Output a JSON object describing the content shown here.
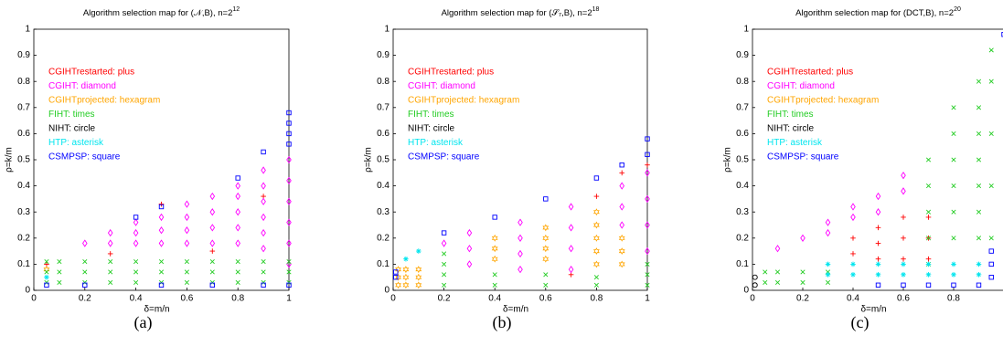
{
  "chart_data": [
    {
      "type": "scatter",
      "title": "Algorithm selection map for (𝒩,B), n=2",
      "title_exponent": "12",
      "caption": "(a)",
      "x_label": "δ=m/n",
      "y_label": "ρ=k/m",
      "xlim": [
        0,
        1
      ],
      "ylim": [
        0,
        1
      ],
      "xticks": [
        0,
        0.2,
        0.4,
        0.6,
        0.8,
        1
      ],
      "yticks": [
        0,
        0.1,
        0.2,
        0.3,
        0.4,
        0.5,
        0.6,
        0.7,
        0.8,
        0.9,
        1
      ],
      "series": [
        {
          "name": "CGIHTrestarted: plus",
          "color": "#ff0000",
          "marker": "plus",
          "x": [
            0.05,
            0.3,
            0.5,
            0.7,
            0.9
          ],
          "values": [
            0.1,
            0.14,
            0.33,
            0.15,
            0.36
          ]
        },
        {
          "name": "CGIHT: diamond",
          "color": "#ff00ff",
          "marker": "diamond",
          "x": [
            0.2,
            0.3,
            0.3,
            0.4,
            0.4,
            0.4,
            0.5,
            0.5,
            0.5,
            0.6,
            0.6,
            0.6,
            0.6,
            0.7,
            0.7,
            0.7,
            0.7,
            0.8,
            0.8,
            0.8,
            0.8,
            0.8,
            0.9,
            0.9,
            0.9,
            0.9,
            0.9,
            0.9,
            1,
            1,
            1,
            1,
            1,
            1
          ],
          "values": [
            0.18,
            0.18,
            0.22,
            0.18,
            0.22,
            0.26,
            0.18,
            0.23,
            0.28,
            0.18,
            0.23,
            0.28,
            0.33,
            0.18,
            0.24,
            0.3,
            0.36,
            0.18,
            0.24,
            0.3,
            0.36,
            0.4,
            0.16,
            0.22,
            0.28,
            0.34,
            0.4,
            0.46,
            0.1,
            0.18,
            0.26,
            0.34,
            0.42,
            0.5
          ]
        },
        {
          "name": "CGIHTprojected: hexagram",
          "color": "#ffa500",
          "marker": "hexagram",
          "x": [
            0.05
          ],
          "values": [
            0.08
          ]
        },
        {
          "name": "FIHT: times",
          "color": "#22cc22",
          "marker": "times",
          "x": [
            0.05,
            0.05,
            0.05,
            0.1,
            0.1,
            0.1,
            0.2,
            0.2,
            0.2,
            0.3,
            0.3,
            0.3,
            0.4,
            0.4,
            0.4,
            0.5,
            0.5,
            0.5,
            0.6,
            0.6,
            0.6,
            0.7,
            0.7,
            0.7,
            0.8,
            0.8,
            0.8,
            0.9,
            0.9,
            0.9,
            1,
            1,
            1
          ],
          "values": [
            0.03,
            0.07,
            0.11,
            0.03,
            0.07,
            0.11,
            0.03,
            0.07,
            0.11,
            0.03,
            0.07,
            0.11,
            0.03,
            0.07,
            0.11,
            0.03,
            0.07,
            0.11,
            0.03,
            0.07,
            0.11,
            0.03,
            0.07,
            0.11,
            0.03,
            0.07,
            0.11,
            0.03,
            0.07,
            0.11,
            0.03,
            0.07,
            0.11
          ]
        },
        {
          "name": "NIHT: circle",
          "color": "#000000",
          "marker": "circle",
          "x": [],
          "values": []
        },
        {
          "name": "HTP: asterisk",
          "color": "#00e5ee",
          "marker": "asterisk",
          "x": [
            0.05
          ],
          "values": [
            0.05
          ]
        },
        {
          "name": "CSMPSP: square",
          "color": "#0000ff",
          "marker": "square",
          "x": [
            0.4,
            0.5,
            0.8,
            0.9,
            1,
            1,
            1,
            1,
            0.05,
            0.2,
            0.5,
            0.7,
            0.9,
            1
          ],
          "values": [
            0.28,
            0.32,
            0.43,
            0.53,
            0.56,
            0.6,
            0.64,
            0.68,
            0.02,
            0.02,
            0.02,
            0.02,
            0.02,
            0.02
          ]
        }
      ]
    },
    {
      "type": "scatter",
      "title": "Algorithm selection map for (𝒮₇,B), n=2",
      "title_exponent": "18",
      "caption": "(b)",
      "x_label": "δ=m/n",
      "y_label": "ρ=k/m",
      "xlim": [
        0,
        1
      ],
      "ylim": [
        0,
        1
      ],
      "xticks": [
        0,
        0.2,
        0.4,
        0.6,
        0.8,
        1
      ],
      "yticks": [
        0,
        0.1,
        0.2,
        0.3,
        0.4,
        0.5,
        0.6,
        0.7,
        0.8,
        0.9,
        1
      ],
      "series": [
        {
          "name": "CGIHTrestarted: plus",
          "color": "#ff0000",
          "marker": "plus",
          "x": [
            0.8,
            0.9,
            1,
            0.7
          ],
          "values": [
            0.36,
            0.45,
            0.48,
            0.06
          ]
        },
        {
          "name": "CGIHT: diamond",
          "color": "#ff00ff",
          "marker": "diamond",
          "x": [
            0.2,
            0.3,
            0.3,
            0.3,
            0.5,
            0.5,
            0.5,
            0.5,
            0.7,
            0.7,
            0.7,
            0.7,
            0.9,
            0.9,
            0.9,
            1,
            1,
            1,
            1
          ],
          "values": [
            0.18,
            0.1,
            0.16,
            0.22,
            0.08,
            0.14,
            0.2,
            0.26,
            0.08,
            0.16,
            0.24,
            0.32,
            0.25,
            0.32,
            0.4,
            0.15,
            0.25,
            0.35,
            0.45
          ]
        },
        {
          "name": "CGIHTprojected: hexagram",
          "color": "#ffa500",
          "marker": "hexagram",
          "x": [
            0.02,
            0.02,
            0.02,
            0.05,
            0.05,
            0.05,
            0.1,
            0.1,
            0.1,
            0.4,
            0.4,
            0.4,
            0.6,
            0.6,
            0.6,
            0.6,
            0.8,
            0.8,
            0.8,
            0.8,
            0.8,
            0.9,
            0.9,
            0.9
          ],
          "values": [
            0.02,
            0.05,
            0.08,
            0.02,
            0.05,
            0.08,
            0.02,
            0.05,
            0.08,
            0.12,
            0.16,
            0.2,
            0.12,
            0.16,
            0.2,
            0.24,
            0.1,
            0.15,
            0.2,
            0.25,
            0.3,
            0.1,
            0.15,
            0.2
          ]
        },
        {
          "name": "FIHT: times",
          "color": "#22cc22",
          "marker": "times",
          "x": [
            0.2,
            0.2,
            0.2,
            0.2,
            0.4,
            0.4,
            0.6,
            0.6,
            0.8,
            0.8,
            1,
            1,
            1
          ],
          "values": [
            0.02,
            0.06,
            0.1,
            0.14,
            0.02,
            0.06,
            0.02,
            0.06,
            0.02,
            0.05,
            0.02,
            0.06,
            0.1
          ]
        },
        {
          "name": "NIHT: circle",
          "color": "#000000",
          "marker": "circle",
          "x": [],
          "values": []
        },
        {
          "name": "HTP: asterisk",
          "color": "#00e5ee",
          "marker": "asterisk",
          "x": [
            0.05,
            0.1
          ],
          "values": [
            0.12,
            0.15
          ]
        },
        {
          "name": "CSMPSP: square",
          "color": "#0000ff",
          "marker": "square",
          "x": [
            0.2,
            0.4,
            0.6,
            0.8,
            0.9,
            1,
            1,
            0.01,
            0.01
          ],
          "values": [
            0.22,
            0.28,
            0.35,
            0.43,
            0.48,
            0.52,
            0.58,
            0.05,
            0.07
          ]
        }
      ]
    },
    {
      "type": "scatter",
      "title": "Algorithm selection map for (DCT,B), n=2",
      "title_exponent": "20",
      "caption": "(c)",
      "x_label": "δ=m/n",
      "y_label": "ρ=k/m",
      "xlim": [
        0,
        1
      ],
      "ylim": [
        0,
        1
      ],
      "xticks": [
        0,
        0.2,
        0.4,
        0.6,
        0.8
      ],
      "yticks": [
        0,
        0.1,
        0.2,
        0.3,
        0.4,
        0.5,
        0.6,
        0.7,
        0.8,
        0.9,
        1
      ],
      "series": [
        {
          "name": "CGIHTrestarted: plus",
          "color": "#ff0000",
          "marker": "plus",
          "x": [
            0.4,
            0.4,
            0.5,
            0.5,
            0.5,
            0.6,
            0.6,
            0.6,
            0.7,
            0.7,
            0.7
          ],
          "values": [
            0.14,
            0.2,
            0.12,
            0.18,
            0.24,
            0.12,
            0.2,
            0.28,
            0.12,
            0.2,
            0.28
          ]
        },
        {
          "name": "CGIHT: diamond",
          "color": "#ff00ff",
          "marker": "diamond",
          "x": [
            0.1,
            0.2,
            0.3,
            0.3,
            0.4,
            0.4,
            0.5,
            0.5,
            0.6,
            0.6
          ],
          "values": [
            0.16,
            0.2,
            0.22,
            0.26,
            0.28,
            0.32,
            0.3,
            0.36,
            0.38,
            0.44
          ]
        },
        {
          "name": "CGIHTprojected: hexagram",
          "color": "#ffa500",
          "marker": "hexagram",
          "x": [],
          "values": []
        },
        {
          "name": "FIHT: times",
          "color": "#22cc22",
          "marker": "times",
          "x": [
            0.05,
            0.05,
            0.1,
            0.1,
            0.2,
            0.2,
            0.3,
            0.3,
            0.7,
            0.7,
            0.7,
            0.7,
            0.7,
            0.8,
            0.8,
            0.8,
            0.8,
            0.8,
            0.8,
            0.9,
            0.9,
            0.9,
            0.9,
            0.9,
            0.9,
            0.9,
            0.95,
            0.95,
            0.95,
            0.95,
            0.95
          ],
          "values": [
            0.03,
            0.07,
            0.03,
            0.07,
            0.03,
            0.07,
            0.03,
            0.07,
            0.1,
            0.2,
            0.3,
            0.4,
            0.5,
            0.2,
            0.3,
            0.4,
            0.5,
            0.6,
            0.7,
            0.2,
            0.3,
            0.4,
            0.5,
            0.6,
            0.7,
            0.8,
            0.2,
            0.4,
            0.6,
            0.8,
            0.92
          ]
        },
        {
          "name": "NIHT: circle",
          "color": "#000000",
          "marker": "circle",
          "x": [
            0.01,
            0.01
          ],
          "values": [
            0.02,
            0.05
          ]
        },
        {
          "name": "HTP: asterisk",
          "color": "#00e5ee",
          "marker": "asterisk",
          "x": [
            0.3,
            0.4,
            0.5,
            0.6,
            0.7,
            0.8,
            0.9,
            0.3,
            0.4,
            0.5,
            0.6,
            0.7,
            0.8,
            0.9
          ],
          "values": [
            0.06,
            0.06,
            0.06,
            0.06,
            0.06,
            0.06,
            0.06,
            0.1,
            0.1,
            0.1,
            0.1,
            0.1,
            0.1,
            0.1
          ]
        },
        {
          "name": "CSMPSP: square",
          "color": "#0000ff",
          "marker": "square",
          "x": [
            0.5,
            0.6,
            0.7,
            0.8,
            0.9,
            0.95,
            0.95,
            0.95,
            1
          ],
          "values": [
            0.02,
            0.02,
            0.02,
            0.02,
            0.02,
            0.05,
            0.1,
            0.15,
            0.98
          ]
        }
      ]
    }
  ]
}
